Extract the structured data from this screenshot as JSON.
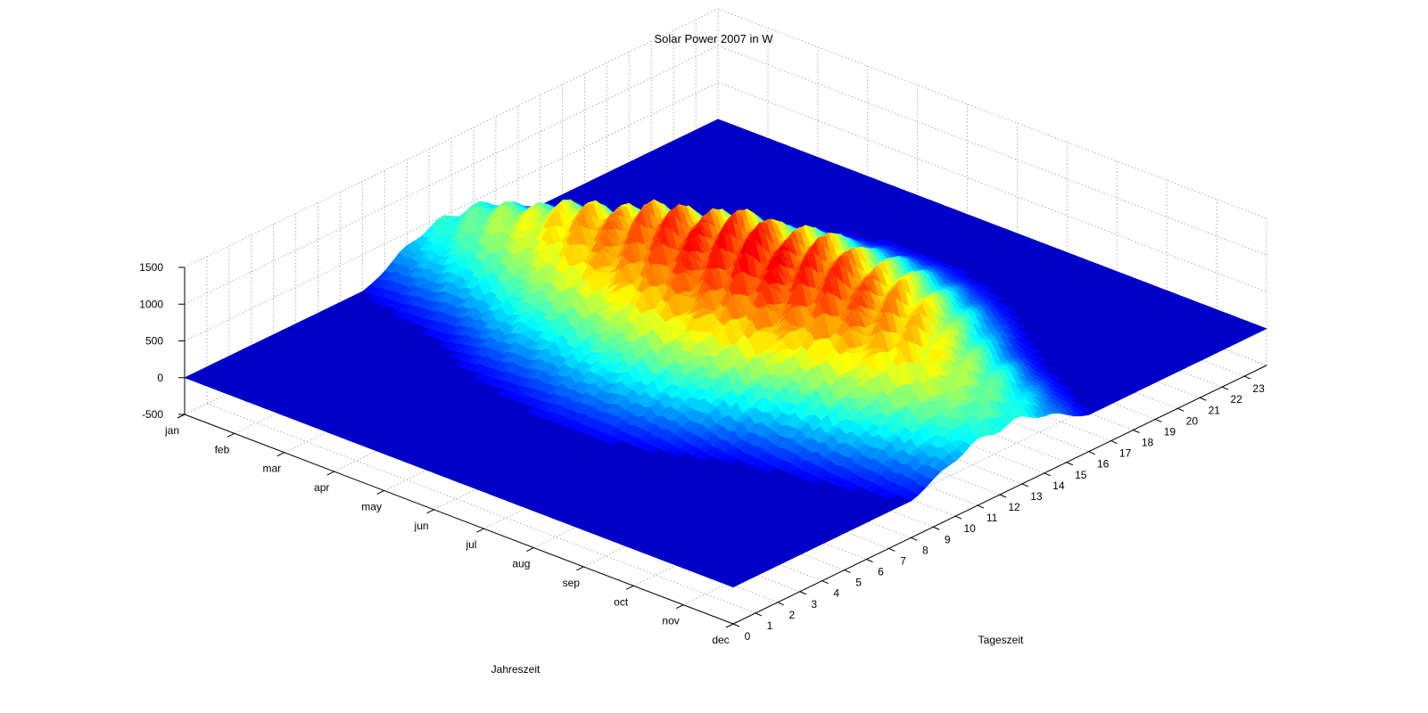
{
  "chart_data": {
    "type": "surface",
    "title": "Solar Power 2007  in W",
    "xlabel": "Jahreszeit",
    "ylabel": "Tageszeit",
    "zlabel": "",
    "x_ticks": [
      "jan",
      "feb",
      "mar",
      "apr",
      "may",
      "jun",
      "jul",
      "aug",
      "sep",
      "oct",
      "nov",
      "dec"
    ],
    "y_ticks": [
      0,
      1,
      2,
      3,
      4,
      5,
      6,
      7,
      8,
      9,
      10,
      11,
      12,
      13,
      14,
      15,
      16,
      17,
      18,
      19,
      20,
      21,
      22,
      23
    ],
    "z_ticks": [
      -500,
      0,
      500,
      1000,
      1500
    ],
    "zlim": [
      -500,
      1500
    ],
    "xlim": [
      "jan",
      "dec"
    ],
    "ylim": [
      0,
      24
    ],
    "grid": true,
    "colormap": "jet",
    "solar_peak_hours": {
      "jan": [
        8,
        16
      ],
      "feb": [
        7.5,
        17
      ],
      "mar": [
        7,
        18
      ],
      "apr": [
        6,
        19.5
      ],
      "may": [
        5.5,
        20.5
      ],
      "jun": [
        5,
        21
      ],
      "jul": [
        5,
        21
      ],
      "aug": [
        5.5,
        20.5
      ],
      "sep": [
        6.5,
        19.5
      ],
      "oct": [
        7,
        18
      ],
      "nov": [
        7.5,
        17
      ],
      "dec": [
        8,
        16
      ]
    },
    "summary": {
      "max_power_w": 1400,
      "baseline_power_w": 0,
      "peak_months": [
        "may",
        "jun",
        "jul",
        "aug"
      ]
    },
    "colors": {
      "low": "#0000c8",
      "mid": "#00ffff",
      "high": "#ffff00",
      "peak": "#d00000"
    }
  }
}
